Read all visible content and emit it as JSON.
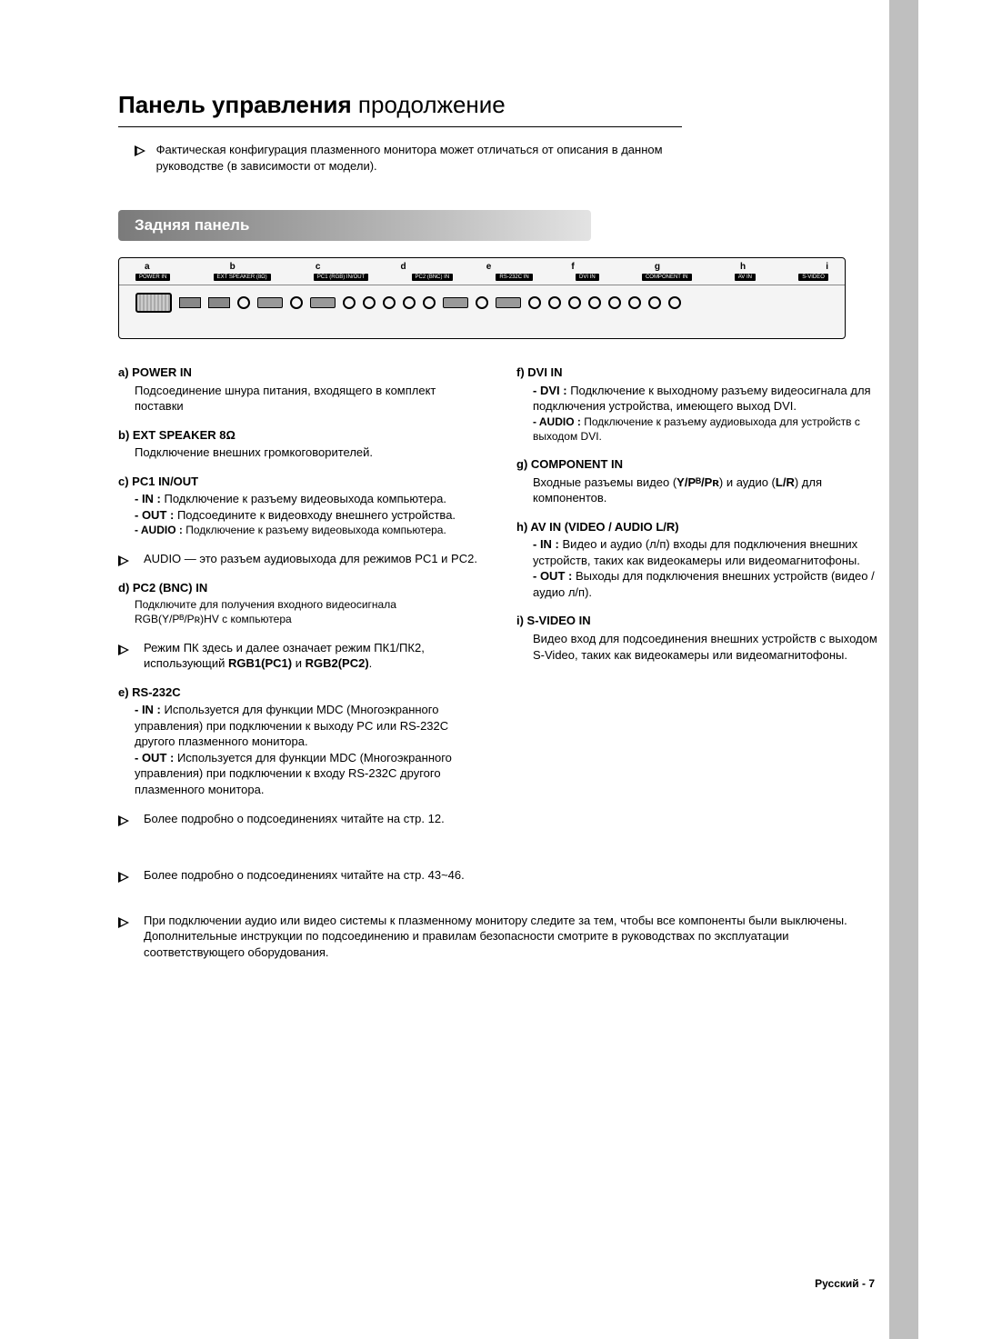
{
  "title": {
    "bold": "Панель управления",
    "rest": " продолжение"
  },
  "intro": "Фактическая конфигурация плазменного монитора может отличаться от описания в данном руководстве (в зависимости от модели).",
  "section_header": "Задняя панель",
  "panel_labels": [
    "a",
    "b",
    "c",
    "d",
    "e",
    "f",
    "g",
    "h",
    "i"
  ],
  "panel_groups": [
    "POWER IN",
    "EXT SPEAKER (8Ω)",
    "PC1 (RGB) IN/OUT",
    "PC2 (BNC) IN",
    "RS-232C IN",
    "DVI IN",
    "COMPONENT IN",
    "AV IN",
    "S-VIDEO"
  ],
  "left": [
    {
      "label": "a) POWER IN",
      "body": "Подсоединение шнура питания, входящего в комплект поставки"
    },
    {
      "label": "b) EXT SPEAKER 8Ω",
      "body": "Подключение внешних громкоговорителей."
    },
    {
      "label": "c) PC1 IN/OUT",
      "lines": [
        {
          "pre": "- IN :",
          "txt": "Подключение к разъему видеовыхода компьютера."
        },
        {
          "pre": "- OUT :",
          "txt": "Подсоедините к видеовходу внешнего устройства."
        },
        {
          "pre": "- AUDIO :",
          "small": true,
          "txt": "Подключение к разъему видеовыхода компьютера."
        }
      ],
      "note": "AUDIO — это разъем аудиовыхода для режимов PC1 и PC2."
    },
    {
      "label": "d) PC2 (BNC) IN",
      "small_body": "Подключите для получения входного видеосигнала RGB(Y/Pᴮ/Pʀ)HV с компьютера",
      "note_html": "Режим ПК здесь и далее означает режим ПК1/ПК2, использующий <b>RGB1(PC1)</b> и <b>RGB2(PC2)</b>."
    },
    {
      "label": "e) RS-232C",
      "lines": [
        {
          "pre": "- IN :",
          "txt": "Используется для функции MDC (Многоэкранного управления) при подключении к выходу PC или RS-232C другого плазменного монитора."
        },
        {
          "pre": "- OUT :",
          "txt": "Используется для функции MDC (Многоэкранного управления) при подключении к входу RS-232C другого плазменного монитора."
        }
      ],
      "note": "Более подробно о подсоединениях читайте на стр. 12."
    }
  ],
  "right": [
    {
      "label": "f) DVI IN",
      "lines": [
        {
          "pre": "- DVI :",
          "txt": "Подключение к выходному разъему видеосигнала для подключения устройства, имеющего выход DVI."
        },
        {
          "pre": "- AUDIO :",
          "small": true,
          "txt": "Подключение к разъему аудиовыхода для устройств с выходом DVI."
        }
      ]
    },
    {
      "label": "g) COMPONENT IN",
      "body_html": "Входные разъемы видео (<b>Y/Pᴮ/Pʀ</b>) и аудио (<b>L/R</b>) для компонентов."
    },
    {
      "label": "h) AV IN (VIDEO / AUDIO L/R)",
      "lines": [
        {
          "pre": "- IN :",
          "txt": "Видео и аудио (л/п) входы для подключения внешних устройств, таких как видеокамеры или видеомагнитофоны."
        },
        {
          "pre": "- OUT :",
          "txt": "Выходы для подключения внешних устройств (видео / аудио л/п)."
        }
      ]
    },
    {
      "label": "i) S-VIDEO IN",
      "body": "Видео вход для подсоединения внешних устройств с выходом S-Video, таких как видеокамеры или видеомагнитофоны."
    }
  ],
  "footer_notes": [
    "Более подробно о подсоединениях читайте на стр. 43~46.",
    "При подключении аудио или видео системы к плазменному монитору следите за тем, чтобы все компоненты были выключены. Дополнительные инструкции по подсоединению и правилам безопасности смотрите в руководствах по эксплуатации соответствующего оборудования."
  ],
  "page_num": "Русский - 7"
}
